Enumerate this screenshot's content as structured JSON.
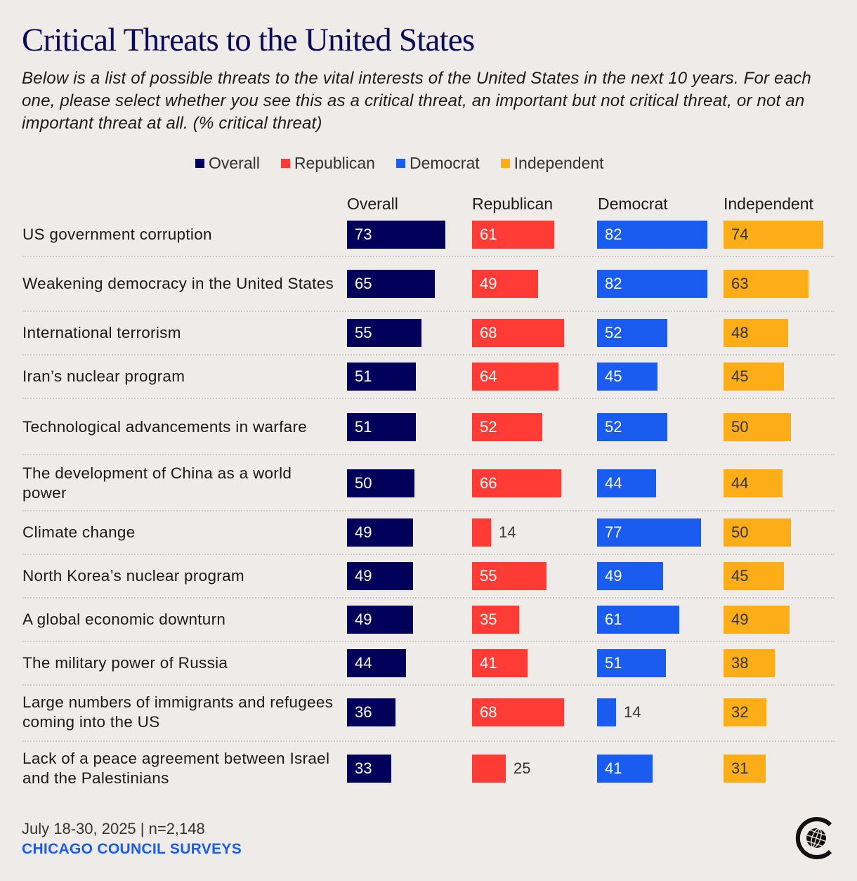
{
  "title": "Critical Threats to the United States",
  "subtitle": "Below is a list of possible threats to the vital interests of the United States in the next 10 years. For each one, please select whether you see this as a critical threat, an important but not critical threat, or not an important threat at all. (% critical threat)",
  "footer": {
    "date_sample": "July 18-30, 2025 | n=2,148",
    "source": "CHICAGO COUNCIL SURVEYS",
    "logo_icon": "chicago-council-globe-logo"
  },
  "chart_data": {
    "type": "bar",
    "orientation": "horizontal",
    "title": "Critical Threats to the United States",
    "subtitle": "(% critical threat)",
    "xlabel": "",
    "ylabel": "",
    "xlim": [
      0,
      100
    ],
    "grid": false,
    "legend_position": "top-center",
    "legend": [
      {
        "name": "Overall",
        "color": "#00005a"
      },
      {
        "name": "Republican",
        "color": "#ff3b36"
      },
      {
        "name": "Democrat",
        "color": "#1a5cf0"
      },
      {
        "name": "Independent",
        "color": "#fcad17"
      }
    ],
    "categories": [
      "US government corruption",
      "Weakening democracy in the United States",
      "International terrorism",
      "Iran’s nuclear program",
      "Technological advancements in warfare",
      "The development of China as a world power",
      "Climate change",
      "North Korea’s nuclear program",
      "A global economic downturn",
      "The military power of Russia",
      "Large numbers of immigrants and refugees coming into the US",
      "Lack of a peace agreement between Israel and the Palestinians"
    ],
    "series": [
      {
        "name": "Overall",
        "color": "#00005a",
        "label_color": "#ffffff",
        "values": [
          73,
          65,
          55,
          51,
          51,
          50,
          49,
          49,
          49,
          44,
          36,
          33
        ]
      },
      {
        "name": "Republican",
        "color": "#ff3b36",
        "label_color": "#ffffff",
        "values": [
          61,
          49,
          68,
          64,
          52,
          66,
          14,
          55,
          35,
          41,
          68,
          25
        ]
      },
      {
        "name": "Democrat",
        "color": "#1a5cf0",
        "label_color": "#ffffff",
        "values": [
          82,
          82,
          52,
          45,
          52,
          44,
          77,
          49,
          61,
          51,
          14,
          41
        ]
      },
      {
        "name": "Independent",
        "color": "#fcad17",
        "label_color": "#333333",
        "values": [
          74,
          63,
          48,
          45,
          50,
          44,
          50,
          45,
          49,
          38,
          32,
          31
        ]
      }
    ]
  }
}
